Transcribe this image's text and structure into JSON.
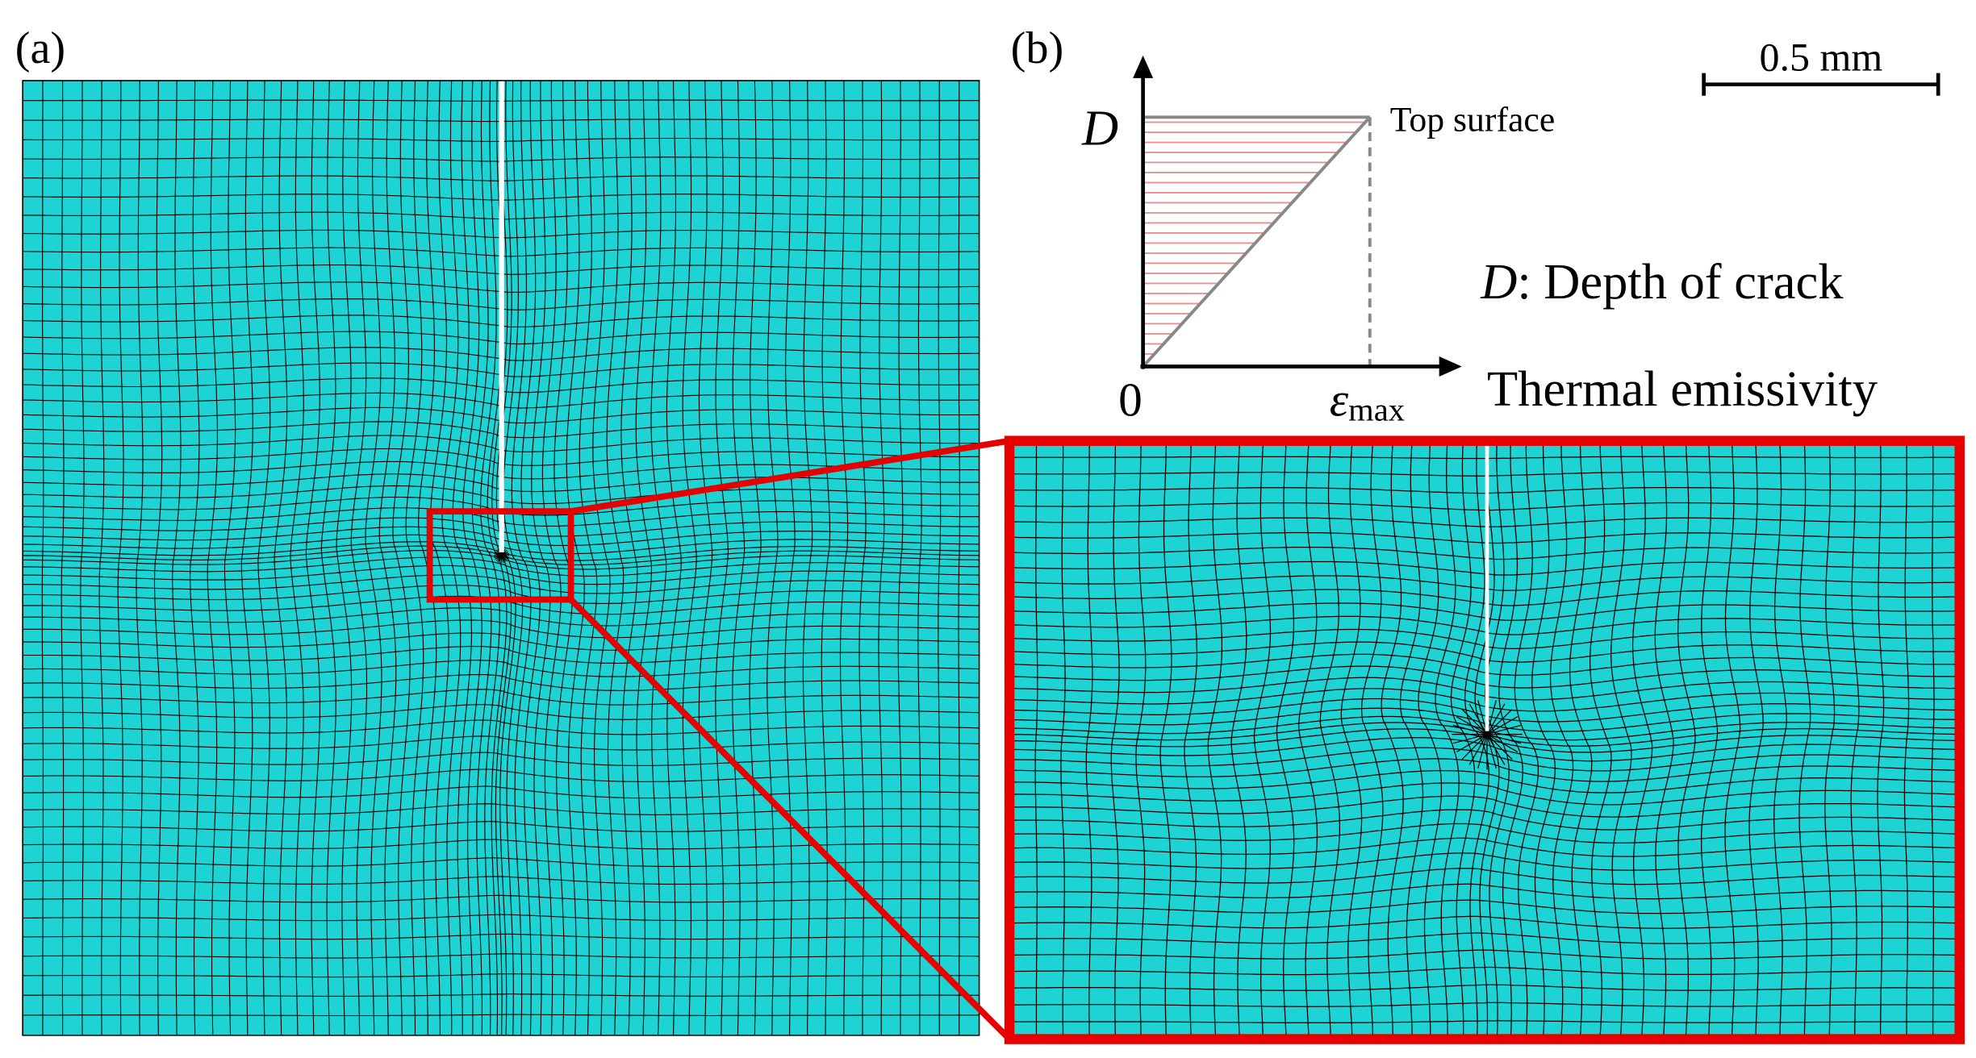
{
  "panel_a": {
    "label": "(a)"
  },
  "panel_b": {
    "label": "(b)",
    "y_axis_label": "D",
    "top_label": "Top surface",
    "origin_label": "0",
    "x_axis_symbol": "ε",
    "x_axis_subscript": "max",
    "legend_symbol": "D",
    "legend_text": ": Depth of crack",
    "x_axis_name": "Thermal emissivity"
  },
  "scale_bar": {
    "label": "0.5 mm"
  }
}
